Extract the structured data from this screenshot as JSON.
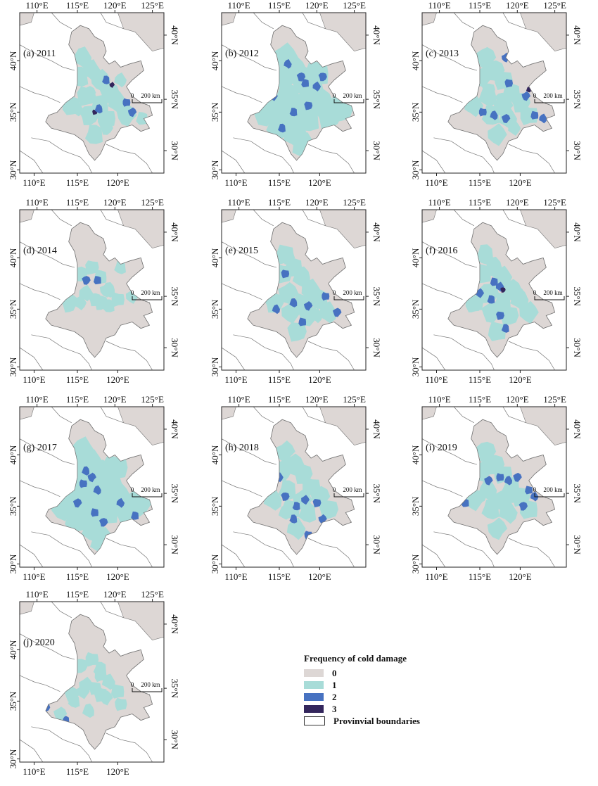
{
  "colors": {
    "freq_0": "#ddd7d5",
    "freq_1": "#a8dcd8",
    "freq_2": "#4772c1",
    "freq_3": "#33265c",
    "boundary": "#777777"
  },
  "axes": {
    "lon_ticks": [
      "110°E",
      "115°E",
      "120°E",
      "125°E"
    ],
    "lon_ticks_bottom": [
      "110°E",
      "115°E",
      "120°E"
    ],
    "lat_ticks_left": [
      "40°N",
      "35°N",
      "30°N"
    ],
    "lat_ticks_right": [
      "40°N",
      "35°N",
      "30°N"
    ]
  },
  "scale_bar": {
    "zero": "0",
    "label": "200 km"
  },
  "panels": [
    {
      "label": "(a) 2011",
      "level": 1,
      "patches": [
        [
          0.6,
          0.42,
          2
        ],
        [
          0.64,
          0.45,
          3
        ],
        [
          0.52,
          0.62,
          3
        ],
        [
          0.55,
          0.6,
          2
        ],
        [
          0.78,
          0.62,
          2
        ],
        [
          0.74,
          0.56,
          2
        ],
        [
          0.4,
          0.6,
          1
        ],
        [
          0.48,
          0.5,
          1
        ],
        [
          0.32,
          0.55,
          1
        ],
        [
          0.7,
          0.42,
          1
        ],
        [
          0.6,
          0.72,
          1
        ],
        [
          0.85,
          0.66,
          1
        ]
      ]
    },
    {
      "label": "(b) 2012",
      "level": 2,
      "patches": [
        [
          0.46,
          0.32,
          2
        ],
        [
          0.55,
          0.4,
          2
        ],
        [
          0.58,
          0.44,
          2
        ],
        [
          0.66,
          0.46,
          2
        ],
        [
          0.7,
          0.4,
          2
        ],
        [
          0.5,
          0.62,
          2
        ],
        [
          0.36,
          0.52,
          2
        ],
        [
          0.6,
          0.58,
          2
        ],
        [
          0.42,
          0.72,
          2
        ]
      ]
    },
    {
      "label": "(c) 2013",
      "level": 1,
      "patches": [
        [
          0.58,
          0.28,
          2
        ],
        [
          0.6,
          0.44,
          2
        ],
        [
          0.74,
          0.48,
          3
        ],
        [
          0.72,
          0.52,
          2
        ],
        [
          0.42,
          0.62,
          2
        ],
        [
          0.5,
          0.64,
          2
        ],
        [
          0.58,
          0.66,
          2
        ],
        [
          0.78,
          0.64,
          2
        ],
        [
          0.84,
          0.66,
          2
        ],
        [
          0.55,
          0.54,
          1
        ],
        [
          0.34,
          0.58,
          1
        ],
        [
          0.64,
          0.72,
          1
        ],
        [
          0.46,
          0.48,
          1
        ]
      ]
    },
    {
      "label": "(d) 2014",
      "level": 0,
      "patches": [
        [
          0.46,
          0.44,
          2
        ],
        [
          0.54,
          0.44,
          2
        ],
        [
          0.42,
          0.58,
          1
        ],
        [
          0.52,
          0.56,
          1
        ],
        [
          0.62,
          0.6,
          1
        ],
        [
          0.78,
          0.54,
          1
        ],
        [
          0.34,
          0.6,
          1
        ],
        [
          0.7,
          0.36,
          1
        ],
        [
          0.6,
          0.5,
          1
        ]
      ]
    },
    {
      "label": "(e) 2015",
      "level": 1,
      "patches": [
        [
          0.44,
          0.4,
          2
        ],
        [
          0.5,
          0.58,
          2
        ],
        [
          0.6,
          0.6,
          2
        ],
        [
          0.72,
          0.54,
          2
        ],
        [
          0.38,
          0.62,
          2
        ],
        [
          0.8,
          0.64,
          2
        ],
        [
          0.56,
          0.7,
          2
        ],
        [
          0.66,
          0.66,
          1
        ],
        [
          0.46,
          0.3,
          1
        ]
      ]
    },
    {
      "label": "(f) 2016",
      "level": 1,
      "patches": [
        [
          0.5,
          0.45,
          2
        ],
        [
          0.54,
          0.48,
          2
        ],
        [
          0.56,
          0.5,
          3
        ],
        [
          0.48,
          0.56,
          2
        ],
        [
          0.4,
          0.52,
          2
        ],
        [
          0.54,
          0.66,
          2
        ],
        [
          0.58,
          0.74,
          2
        ],
        [
          0.68,
          0.54,
          1
        ],
        [
          0.36,
          0.6,
          1
        ]
      ]
    },
    {
      "label": "(g) 2017",
      "level": 2,
      "patches": [
        [
          0.46,
          0.4,
          2
        ],
        [
          0.5,
          0.44,
          2
        ],
        [
          0.44,
          0.48,
          2
        ],
        [
          0.54,
          0.52,
          2
        ],
        [
          0.4,
          0.6,
          2
        ],
        [
          0.52,
          0.66,
          2
        ],
        [
          0.7,
          0.6,
          2
        ],
        [
          0.58,
          0.72,
          2
        ],
        [
          0.8,
          0.68,
          2
        ]
      ]
    },
    {
      "label": "(h) 2018",
      "level": 1,
      "patches": [
        [
          0.4,
          0.44,
          2
        ],
        [
          0.44,
          0.56,
          2
        ],
        [
          0.52,
          0.62,
          2
        ],
        [
          0.58,
          0.58,
          2
        ],
        [
          0.66,
          0.6,
          2
        ],
        [
          0.5,
          0.7,
          2
        ],
        [
          0.7,
          0.7,
          2
        ],
        [
          0.6,
          0.8,
          2
        ],
        [
          0.44,
          0.66,
          1
        ]
      ]
    },
    {
      "label": "(i) 2019",
      "level": 1,
      "patches": [
        [
          0.46,
          0.46,
          2
        ],
        [
          0.54,
          0.44,
          2
        ],
        [
          0.6,
          0.46,
          2
        ],
        [
          0.66,
          0.44,
          2
        ],
        [
          0.74,
          0.52,
          2
        ],
        [
          0.78,
          0.56,
          2
        ],
        [
          0.7,
          0.62,
          2
        ],
        [
          0.3,
          0.6,
          2
        ],
        [
          0.5,
          0.58,
          1
        ],
        [
          0.4,
          0.56,
          1
        ],
        [
          0.62,
          0.56,
          1
        ]
      ]
    },
    {
      "label": "(j) 2020",
      "level": 0,
      "patches": [
        [
          0.18,
          0.66,
          2
        ],
        [
          0.32,
          0.74,
          2
        ],
        [
          0.44,
          0.56,
          1
        ],
        [
          0.52,
          0.54,
          1
        ],
        [
          0.38,
          0.62,
          1
        ],
        [
          0.6,
          0.6,
          1
        ],
        [
          0.7,
          0.64,
          1
        ],
        [
          0.48,
          0.68,
          1
        ],
        [
          0.28,
          0.7,
          1
        ],
        [
          0.56,
          0.46,
          1
        ]
      ]
    }
  ],
  "legend": {
    "title": "Frequency of cold damage",
    "items": [
      {
        "label": "0",
        "color_key": "freq_0"
      },
      {
        "label": "1",
        "color_key": "freq_1"
      },
      {
        "label": "2",
        "color_key": "freq_2"
      },
      {
        "label": "3",
        "color_key": "freq_3"
      },
      {
        "label": "Provinvial boundaries",
        "color_key": "boundary"
      }
    ]
  }
}
